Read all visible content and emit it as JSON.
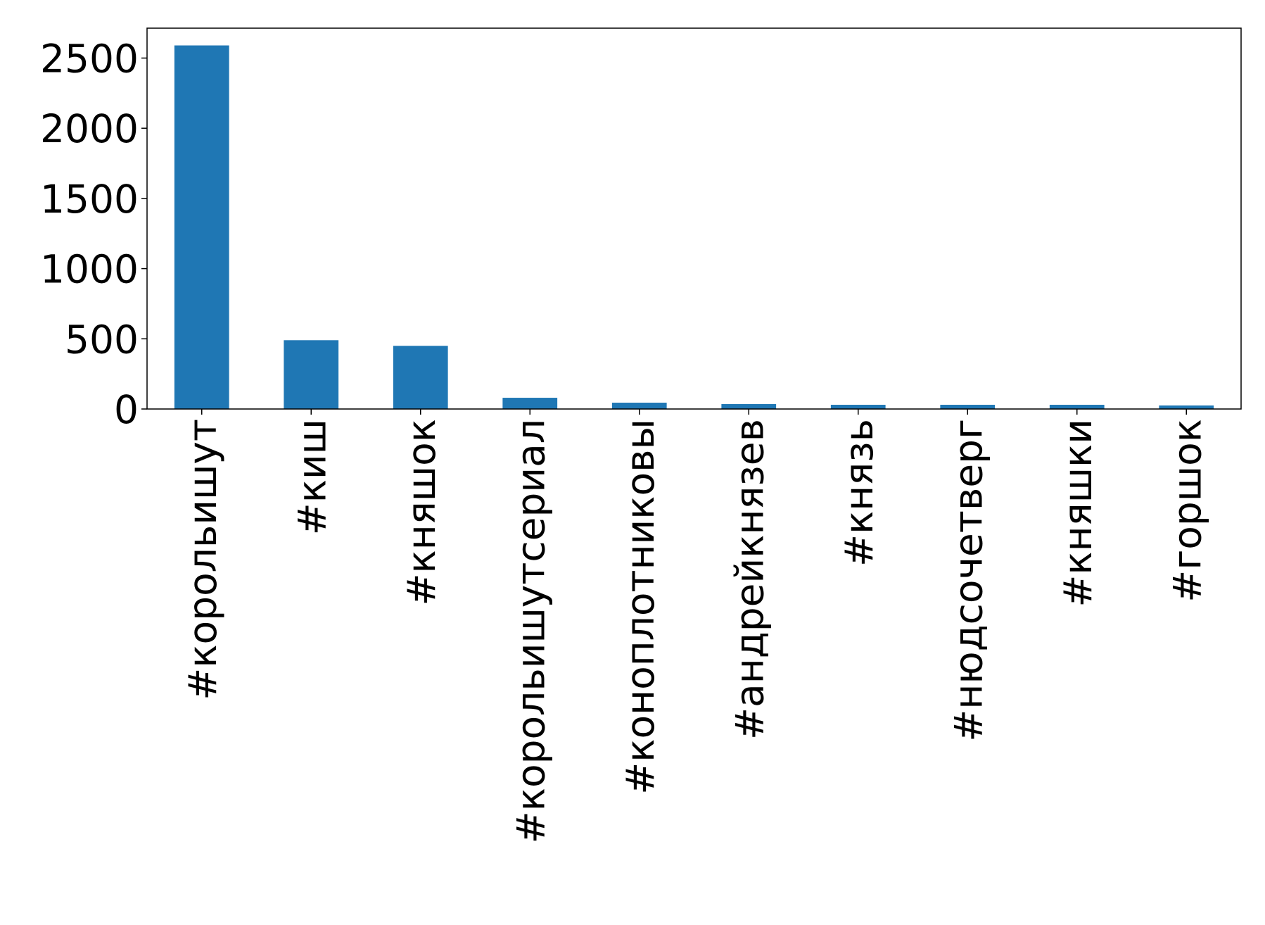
{
  "chart_data": {
    "type": "bar",
    "categories": [
      "#корольишут",
      "#киш",
      "#княшок",
      "#корольишутсериал",
      "#коноплотниковы",
      "#андрейкнязев",
      "#князь",
      "#нюдсочетверг",
      "#княшки",
      "#горшок"
    ],
    "values": [
      2590,
      490,
      450,
      80,
      45,
      35,
      30,
      30,
      30,
      25
    ],
    "color": "#1f77b4",
    "ylim": [
      0,
      2713
    ],
    "yticks": [
      0,
      500,
      1000,
      1500,
      2000,
      2500
    ],
    "grid": false
  }
}
